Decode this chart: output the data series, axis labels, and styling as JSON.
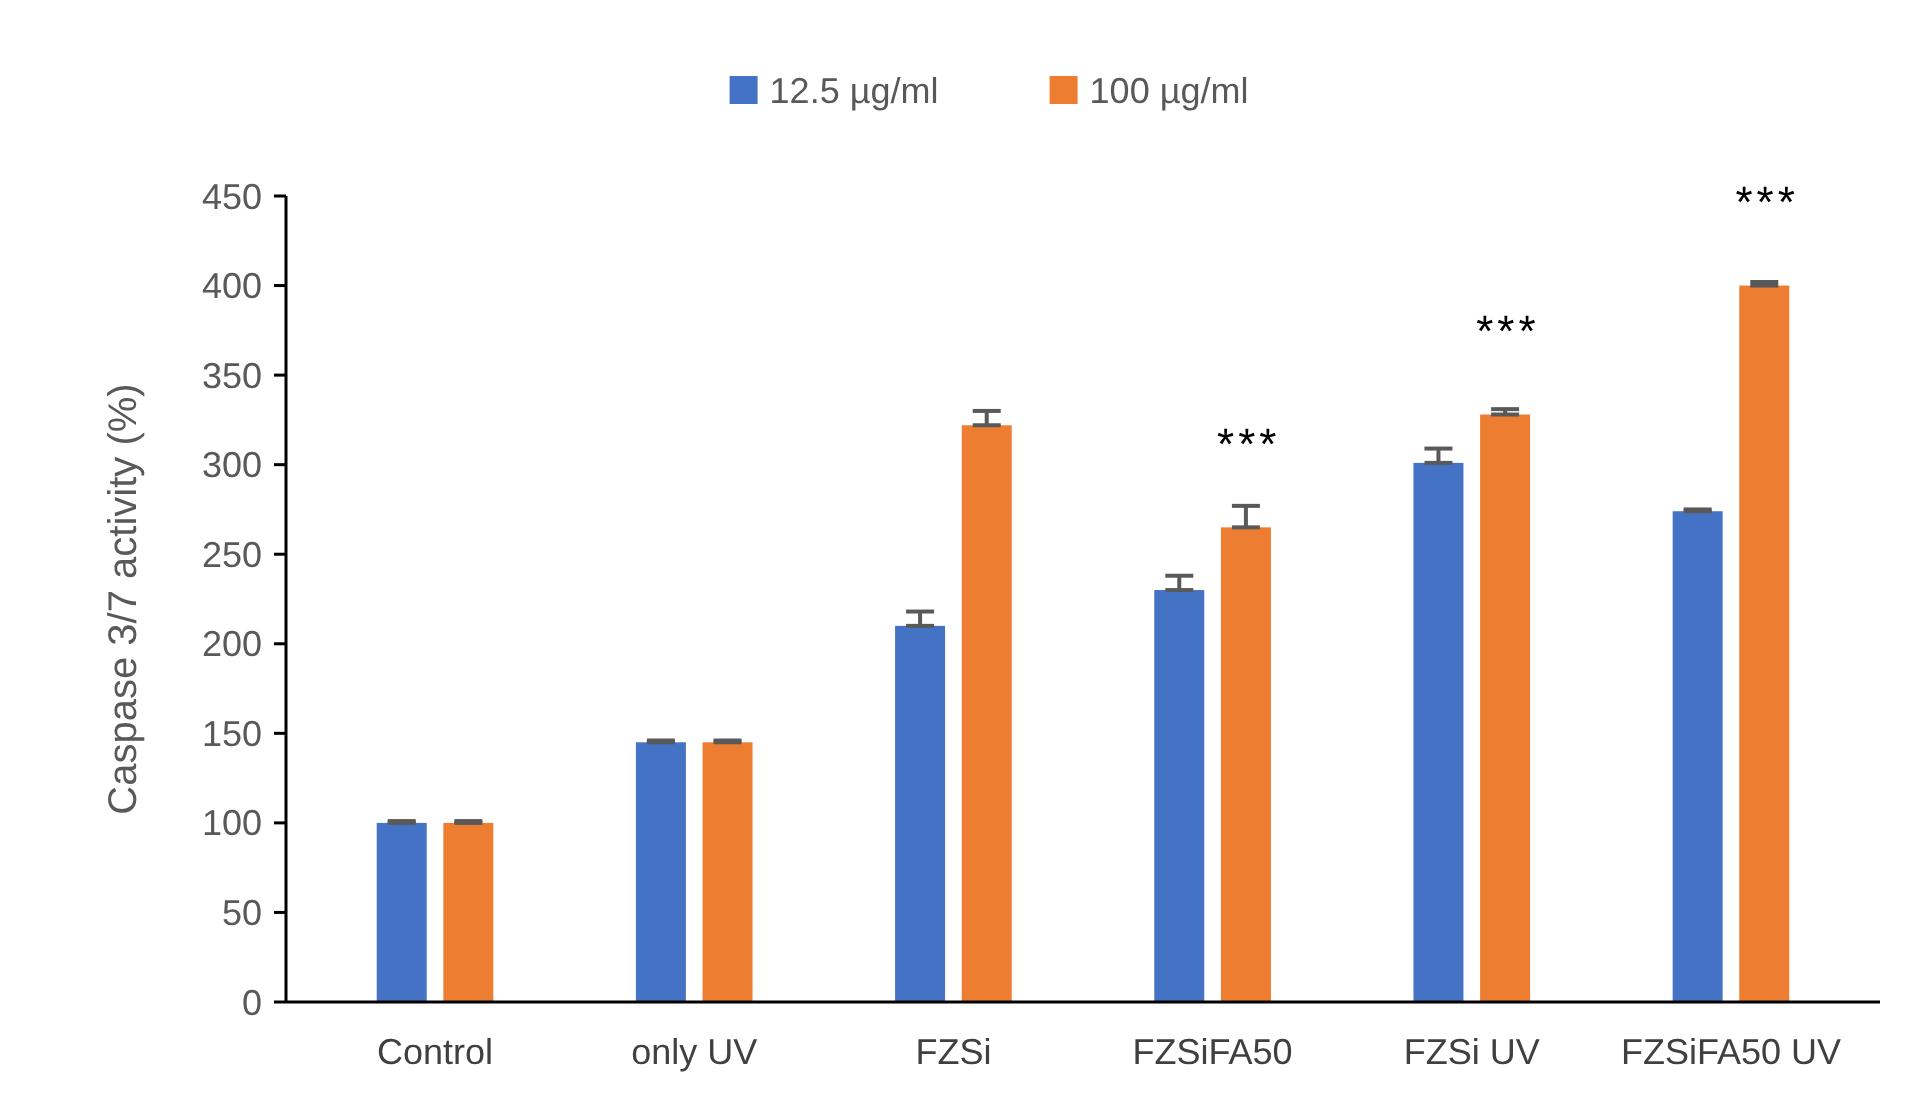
{
  "chart_data": {
    "type": "bar",
    "ylabel": "Caspase 3/7 activity (%)",
    "categories": [
      "Control",
      "only UV",
      "FZSi",
      "FZSiFA50",
      "FZSi UV",
      "FZSiFA50 UV"
    ],
    "series": [
      {
        "name": "12.5 µg/ml",
        "color": "#4472c4",
        "values": [
          100,
          145,
          210,
          230,
          301,
          274
        ],
        "errors": [
          [
            100,
            101
          ],
          [
            145,
            146
          ],
          [
            210,
            218
          ],
          [
            230,
            238
          ],
          [
            301,
            309
          ],
          [
            274,
            275
          ]
        ]
      },
      {
        "name": "100 µg/ml",
        "color": "#ed7d31",
        "values": [
          100,
          145,
          322,
          265,
          328,
          400
        ],
        "errors": [
          [
            100,
            101
          ],
          [
            145,
            146
          ],
          [
            322,
            330
          ],
          [
            265,
            277
          ],
          [
            328,
            331
          ],
          [
            400,
            402
          ]
        ]
      }
    ],
    "ylim": [
      0,
      450
    ],
    "yticks": [
      0,
      50,
      100,
      150,
      200,
      250,
      300,
      350,
      400,
      450
    ],
    "grid": false,
    "legend": "top",
    "annotations": [
      {
        "text": "***",
        "x": "FZSiFA50",
        "y": 265
      },
      {
        "text": "***",
        "x": "FZSi UV",
        "y": 328
      },
      {
        "text": "***",
        "x": "FZSiFA50 UV",
        "y": 400
      }
    ]
  }
}
